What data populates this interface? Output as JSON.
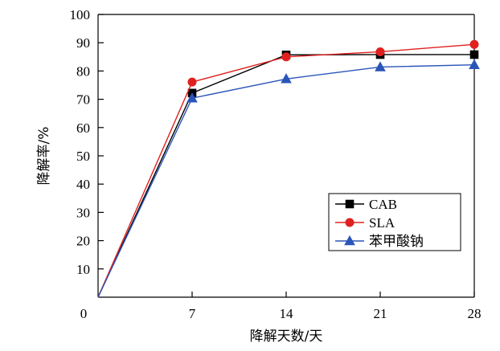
{
  "chart_data": {
    "type": "line",
    "xlabel": "降解天数/天",
    "ylabel": "降解率/%",
    "x": [
      0,
      7,
      14,
      21,
      28
    ],
    "xlim": [
      0,
      28
    ],
    "ylim": [
      0,
      100
    ],
    "x_ticks": [
      "0",
      "7",
      "14",
      "21",
      "28"
    ],
    "y_ticks": [
      "10",
      "20",
      "30",
      "40",
      "50",
      "60",
      "70",
      "80",
      "90",
      "100"
    ],
    "grid": false,
    "legend_position": "lower-right",
    "series": [
      {
        "name": "CAB",
        "color": "#000000",
        "marker": "square",
        "values": [
          0,
          72.2,
          85.7,
          85.8,
          85.8
        ]
      },
      {
        "name": "SLA",
        "color": "#e02020",
        "marker": "circle",
        "values": [
          0,
          76.1,
          85.0,
          86.8,
          89.4
        ]
      },
      {
        "name": "苯甲酸钠",
        "color": "#2a55b8",
        "marker": "triangle",
        "values": [
          0,
          70.4,
          77.2,
          81.4,
          82.2
        ]
      }
    ]
  }
}
